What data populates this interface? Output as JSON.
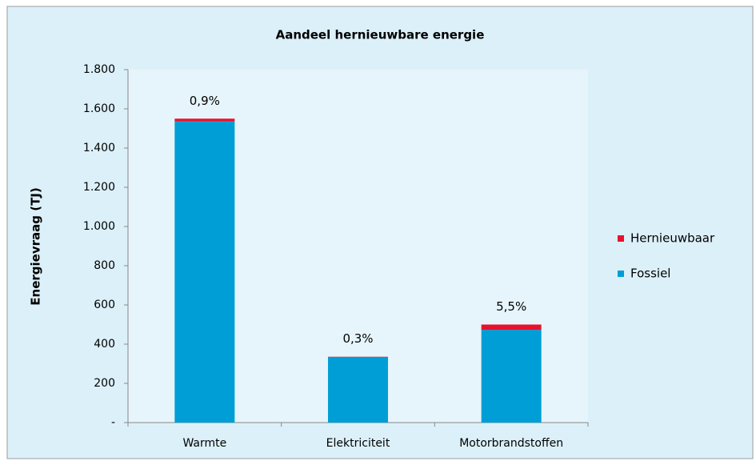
{
  "chart_data": {
    "type": "stacked_bar",
    "title": "Aandeel hernieuwbare energie",
    "y_label": "Energievraag (TJ)",
    "categories": [
      "Warmte",
      "Elektriciteit",
      "Motorbrandstoffen"
    ],
    "series": [
      {
        "name": "Fossiel",
        "color": "#009ed6",
        "values": [
          1536,
          335,
          473
        ]
      },
      {
        "name": "Hernieuwbaar",
        "color": "#e8112d",
        "values": [
          14,
          1,
          27
        ]
      }
    ],
    "annotations": [
      "0,9%",
      "0,3%",
      "5,5%"
    ],
    "ylim": [
      0,
      1800
    ],
    "yticks": [
      {
        "value": 0,
        "label": "-"
      },
      200,
      400,
      600,
      800,
      {
        "value": 1000,
        "label": "1.000"
      },
      {
        "value": 1200,
        "label": "1.200"
      },
      {
        "value": 1400,
        "label": "1.400"
      },
      {
        "value": 1600,
        "label": "1.600"
      },
      {
        "value": 1800,
        "label": "1.800"
      }
    ],
    "legend": "right",
    "grid": false
  }
}
